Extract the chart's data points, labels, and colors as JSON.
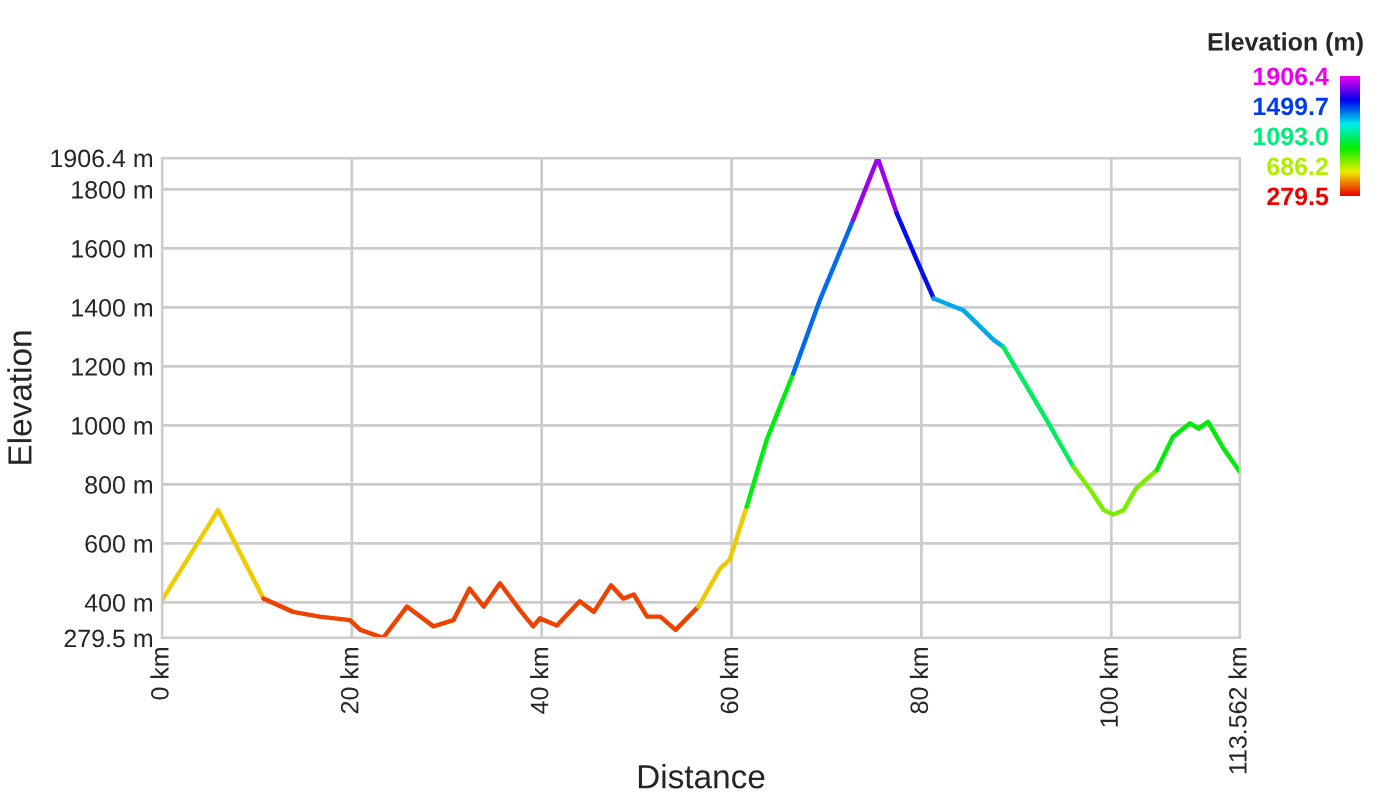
{
  "chart_data": {
    "type": "line",
    "xlabel": "Distance",
    "ylabel": "Elevation",
    "legend_title": "Elevation (m)",
    "series": [
      {
        "color": "#edcc00",
        "x": [
          0,
          5.9,
          10.7
        ],
        "values": [
          408,
          713,
          413
        ]
      },
      {
        "color": "#ed4200",
        "x": [
          10.7,
          13.8,
          16.6,
          19.8,
          20.9,
          23.3,
          25.8,
          28.6,
          30.7,
          32.4,
          33.9,
          35.6,
          37.7,
          39.1,
          39.8,
          41.6,
          44.0,
          45.5,
          47.3,
          48.6,
          49.7,
          51.1,
          52.5,
          54.1,
          56.5
        ],
        "values": [
          413,
          368,
          352,
          340,
          307,
          280,
          386,
          319,
          340,
          447,
          386,
          465,
          374,
          319,
          346,
          322,
          404,
          368,
          458,
          413,
          427,
          352,
          352,
          307,
          386
        ]
      },
      {
        "color": "#edcb00",
        "x": [
          56.5,
          58.8,
          59.8,
          61.6
        ],
        "values": [
          386,
          515,
          544,
          725
        ]
      },
      {
        "color": "#00ed0e",
        "x": [
          61.6,
          63.7,
          66.5
        ],
        "values": [
          725,
          951,
          1176
        ]
      },
      {
        "color": "#006bed",
        "x": [
          66.5,
          69.3,
          72.8
        ],
        "values": [
          1176,
          1425,
          1696
        ]
      },
      {
        "color": "#9e00ed",
        "x": [
          72.8,
          75.4,
          77.4
        ],
        "values": [
          1696,
          1906,
          1719
        ]
      },
      {
        "color": "#0010ed",
        "x": [
          77.4,
          79.5,
          81.3
        ],
        "values": [
          1719,
          1561,
          1430
        ]
      },
      {
        "color": "#00a8ed",
        "x": [
          81.3,
          83.4,
          84.4,
          87.6,
          88.6
        ],
        "values": [
          1430,
          1403,
          1391,
          1290,
          1267
        ]
      },
      {
        "color": "#00ed5f",
        "x": [
          88.6,
          90.7,
          93.2,
          96.0
        ],
        "values": [
          1267,
          1154,
          1018,
          860
        ]
      },
      {
        "color": "#7ced00",
        "x": [
          96.0,
          97.8,
          99.2,
          100.2,
          101.3,
          102.6,
          104.8
        ],
        "values": [
          860,
          781,
          713,
          698,
          713,
          786,
          849
        ]
      },
      {
        "color": "#00ed08",
        "x": [
          104.8,
          106.5,
          108.3,
          109.2,
          110.2,
          111.8,
          113.562
        ],
        "values": [
          849,
          962,
          1007,
          989,
          1012,
          923,
          842
        ]
      }
    ],
    "xlim": [
      0,
      113.562
    ],
    "xticks": [
      {
        "value": 0,
        "label": "0 km"
      },
      {
        "value": 20,
        "label": "20 km"
      },
      {
        "value": 40,
        "label": "40 km"
      },
      {
        "value": 60,
        "label": "60 km"
      },
      {
        "value": 80,
        "label": "80 km"
      },
      {
        "value": 100,
        "label": "100 km"
      },
      {
        "value": 113.562,
        "label": "113.562 km"
      }
    ],
    "ylim": [
      279.5,
      1906.4
    ],
    "yticks": [
      {
        "value": 279.5,
        "label": "279.5 m"
      },
      {
        "value": 400,
        "label": "400 m"
      },
      {
        "value": 600,
        "label": "600 m"
      },
      {
        "value": 800,
        "label": "800 m"
      },
      {
        "value": 1000,
        "label": "1000 m"
      },
      {
        "value": 1200,
        "label": "1200 m"
      },
      {
        "value": 1400,
        "label": "1400 m"
      },
      {
        "value": 1600,
        "label": "1600 m"
      },
      {
        "value": 1800,
        "label": "1800 m"
      },
      {
        "value": 1906.4,
        "label": "1906.4 m"
      }
    ],
    "clim": [
      279.5,
      1906.4
    ],
    "cticks": [
      {
        "value": 279.5,
        "label": "279.5"
      },
      {
        "value": 686.2,
        "label": "686.2"
      },
      {
        "value": 1093.0,
        "label": "1093.0"
      },
      {
        "value": 1499.7,
        "label": "1499.7"
      },
      {
        "value": 1906.4,
        "label": "1906.4"
      }
    ],
    "grid": true
  }
}
